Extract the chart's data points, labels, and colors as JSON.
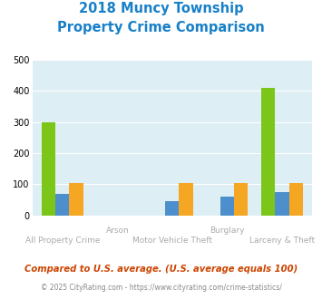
{
  "title_line1": "2018 Muncy Township",
  "title_line2": "Property Crime Comparison",
  "groups": [
    {
      "name": "All Property Crime",
      "label_row1": "",
      "label_row2": "All Property Crime"
    },
    {
      "name": "Arson",
      "label_row1": "Arson",
      "label_row2": ""
    },
    {
      "name": "Motor Vehicle Theft",
      "label_row1": "",
      "label_row2": "Motor Vehicle Theft"
    },
    {
      "name": "Burglary",
      "label_row1": "Burglary",
      "label_row2": ""
    },
    {
      "name": "Larceny & Theft",
      "label_row1": "",
      "label_row2": "Larceny & Theft"
    }
  ],
  "series": {
    "Muncy Township": [
      300,
      0,
      0,
      0,
      410
    ],
    "Pennsylvania": [
      70,
      0,
      45,
      60,
      75
    ],
    "National": [
      105,
      0,
      105,
      105,
      105
    ]
  },
  "colors": {
    "Muncy Township": "#7bc618",
    "Pennsylvania": "#4d8fcc",
    "National": "#f5a623"
  },
  "ylim": [
    0,
    500
  ],
  "yticks": [
    0,
    100,
    200,
    300,
    400,
    500
  ],
  "title_color": "#1880c8",
  "title_fontsize": 10.5,
  "bg_color": "#ddeef4",
  "footer_text": "Compared to U.S. average. (U.S. average equals 100)",
  "footer2": "© 2025 CityRating.com - https://www.cityrating.com/crime-statistics/",
  "bar_width": 0.25,
  "label_row1_color": "#aaaaaa",
  "label_row2_color": "#aaaaaa"
}
